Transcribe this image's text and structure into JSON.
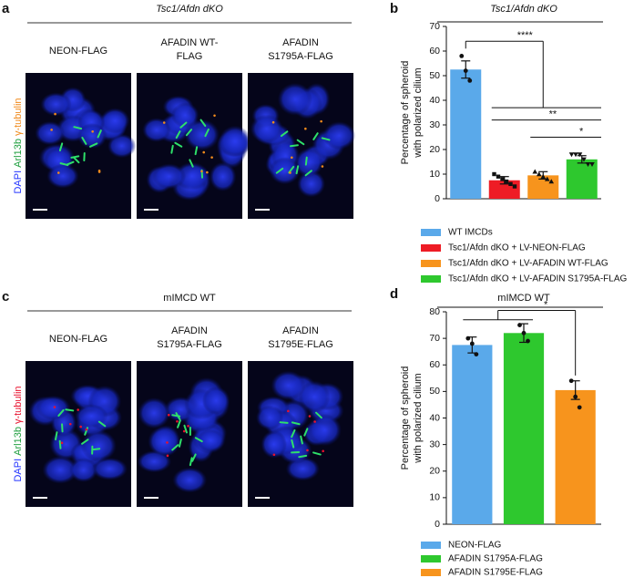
{
  "panels": [
    {
      "letter": "a",
      "title": "Tsc1/Afdn dKO",
      "stain": [
        "DAPI",
        "Arl13b",
        "γ-tubulin"
      ],
      "stain_colors": [
        "#2233ff",
        "#1e9e3e",
        "#f08a1c"
      ],
      "columns": [
        [
          "NEON-FLAG"
        ],
        [
          "AFADIN WT-",
          "FLAG"
        ],
        [
          "AFADIN",
          "S1795A-FLAG"
        ]
      ]
    },
    {
      "letter": "c",
      "title": "mIMCD WT",
      "stain": [
        "DAPI",
        "Arl13b",
        "γ-tubulin"
      ],
      "stain_colors": [
        "#2233ff",
        "#1e9e3e",
        "#e8112d"
      ],
      "columns": [
        [
          "NEON-FLAG"
        ],
        [
          "AFADIN",
          "S1795A-FLAG"
        ],
        [
          "AFADIN",
          "S1795E-FLAG"
        ]
      ]
    }
  ],
  "chart_data": [
    {
      "type": "bar",
      "panel": "b",
      "title": "Tsc1/Afdn dKO",
      "ylabel": [
        "Percentage of spheroid",
        "with polarized cilium"
      ],
      "categories": [
        null,
        null,
        null,
        null
      ],
      "values": [
        52.5,
        7.5,
        9.5,
        16
      ],
      "errors": [
        3.5,
        1.5,
        1.5,
        1.5
      ],
      "points": [
        [
          58,
          52,
          48
        ],
        [
          10,
          9,
          8,
          7,
          6,
          5
        ],
        [
          11,
          10,
          9,
          8,
          7
        ],
        [
          18,
          18,
          18,
          16,
          14,
          14
        ]
      ],
      "markers": [
        "circle",
        "square",
        "triangle",
        "triangle-down"
      ],
      "colors": [
        "#5aa9ea",
        "#ee1c25",
        "#f7941d",
        "#2ec82e"
      ],
      "legend": [
        "WT IMCDs",
        "Tsc1/Afdn dKO + LV-NEON-FLAG",
        "Tsc1/Afdn dKO + LV-AFADIN WT-FLAG",
        "Tsc1/Afdn dKO + LV-AFADIN S1795A-FLAG"
      ],
      "ylim": [
        0,
        70
      ],
      "yticks": [
        0,
        10,
        20,
        30,
        40,
        50,
        60,
        70
      ],
      "annotations": [
        "****",
        "**",
        "*"
      ]
    },
    {
      "type": "bar",
      "panel": "d",
      "title": "mIMCD WT",
      "ylabel": [
        "Percentage of spheroid",
        "with polarized cilium"
      ],
      "categories": [
        null,
        null,
        null
      ],
      "values": [
        67.5,
        72,
        50.5
      ],
      "errors": [
        3,
        3.5,
        3.5
      ],
      "points": [
        [
          70,
          68,
          64
        ],
        [
          75,
          72,
          69
        ],
        [
          54,
          48,
          44
        ]
      ],
      "markers": [
        "circle",
        "circle",
        "circle"
      ],
      "colors": [
        "#5aa9ea",
        "#2ec82e",
        "#f7941d"
      ],
      "legend": [
        "NEON-FLAG",
        "AFADIN S1795A-FLAG",
        "AFADIN S1795E-FLAG"
      ],
      "ylim": [
        0,
        80
      ],
      "yticks": [
        0,
        10,
        20,
        30,
        40,
        50,
        60,
        70,
        80
      ],
      "annotations": [
        "*"
      ]
    }
  ]
}
